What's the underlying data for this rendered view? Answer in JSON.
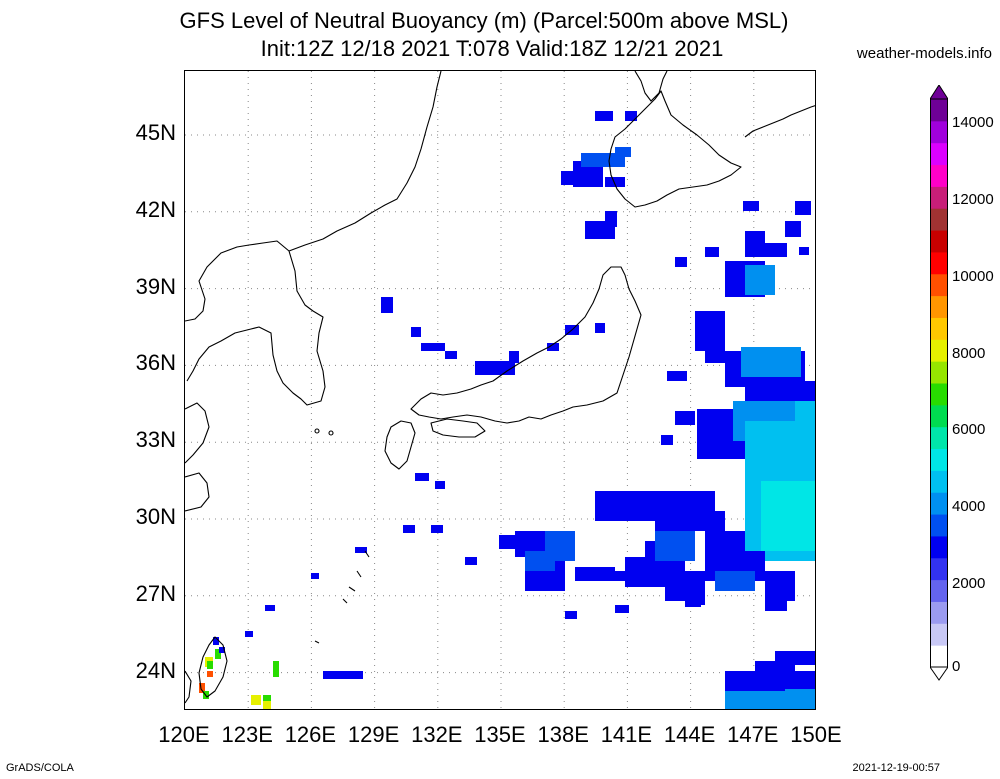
{
  "title": {
    "line1": "GFS Level of Neutral Buoyancy (m) (Parcel:500m above MSL)",
    "line2": "Init:12Z 12/18 2021 T:078 Valid:18Z 12/21 2021"
  },
  "source": "weather-models.info",
  "map": {
    "lat_labels": [
      "45N",
      "42N",
      "39N",
      "36N",
      "33N",
      "30N",
      "27N",
      "24N"
    ],
    "lon_labels": [
      "120E",
      "123E",
      "126E",
      "129E",
      "132E",
      "135E",
      "138E",
      "141E",
      "144E",
      "147E",
      "150E"
    ],
    "lat_range": [
      22.5,
      47.5
    ],
    "lon_range": [
      120,
      150
    ],
    "gridlines": true
  },
  "colorbar": {
    "labels": [
      "0",
      "2000",
      "4000",
      "6000",
      "8000",
      "10000",
      "12000",
      "14000"
    ],
    "colors": [
      "#ffffff",
      "#c8c8f5",
      "#9b9bf0",
      "#6464ee",
      "#3232f0",
      "#0000f0",
      "#0050f0",
      "#0090f0",
      "#00c0f0",
      "#00e6e6",
      "#00e6aa",
      "#00dc50",
      "#28dc00",
      "#96e600",
      "#e6f000",
      "#ffc800",
      "#ff9600",
      "#ff5000",
      "#ff0000",
      "#c80000",
      "#a03232",
      "#c81e78",
      "#ff00c8",
      "#dc00ff",
      "#a000dc",
      "#6e0096"
    ]
  },
  "footer": {
    "left": "GrADS/COLA",
    "right": "2021-12-19-00:57"
  }
}
